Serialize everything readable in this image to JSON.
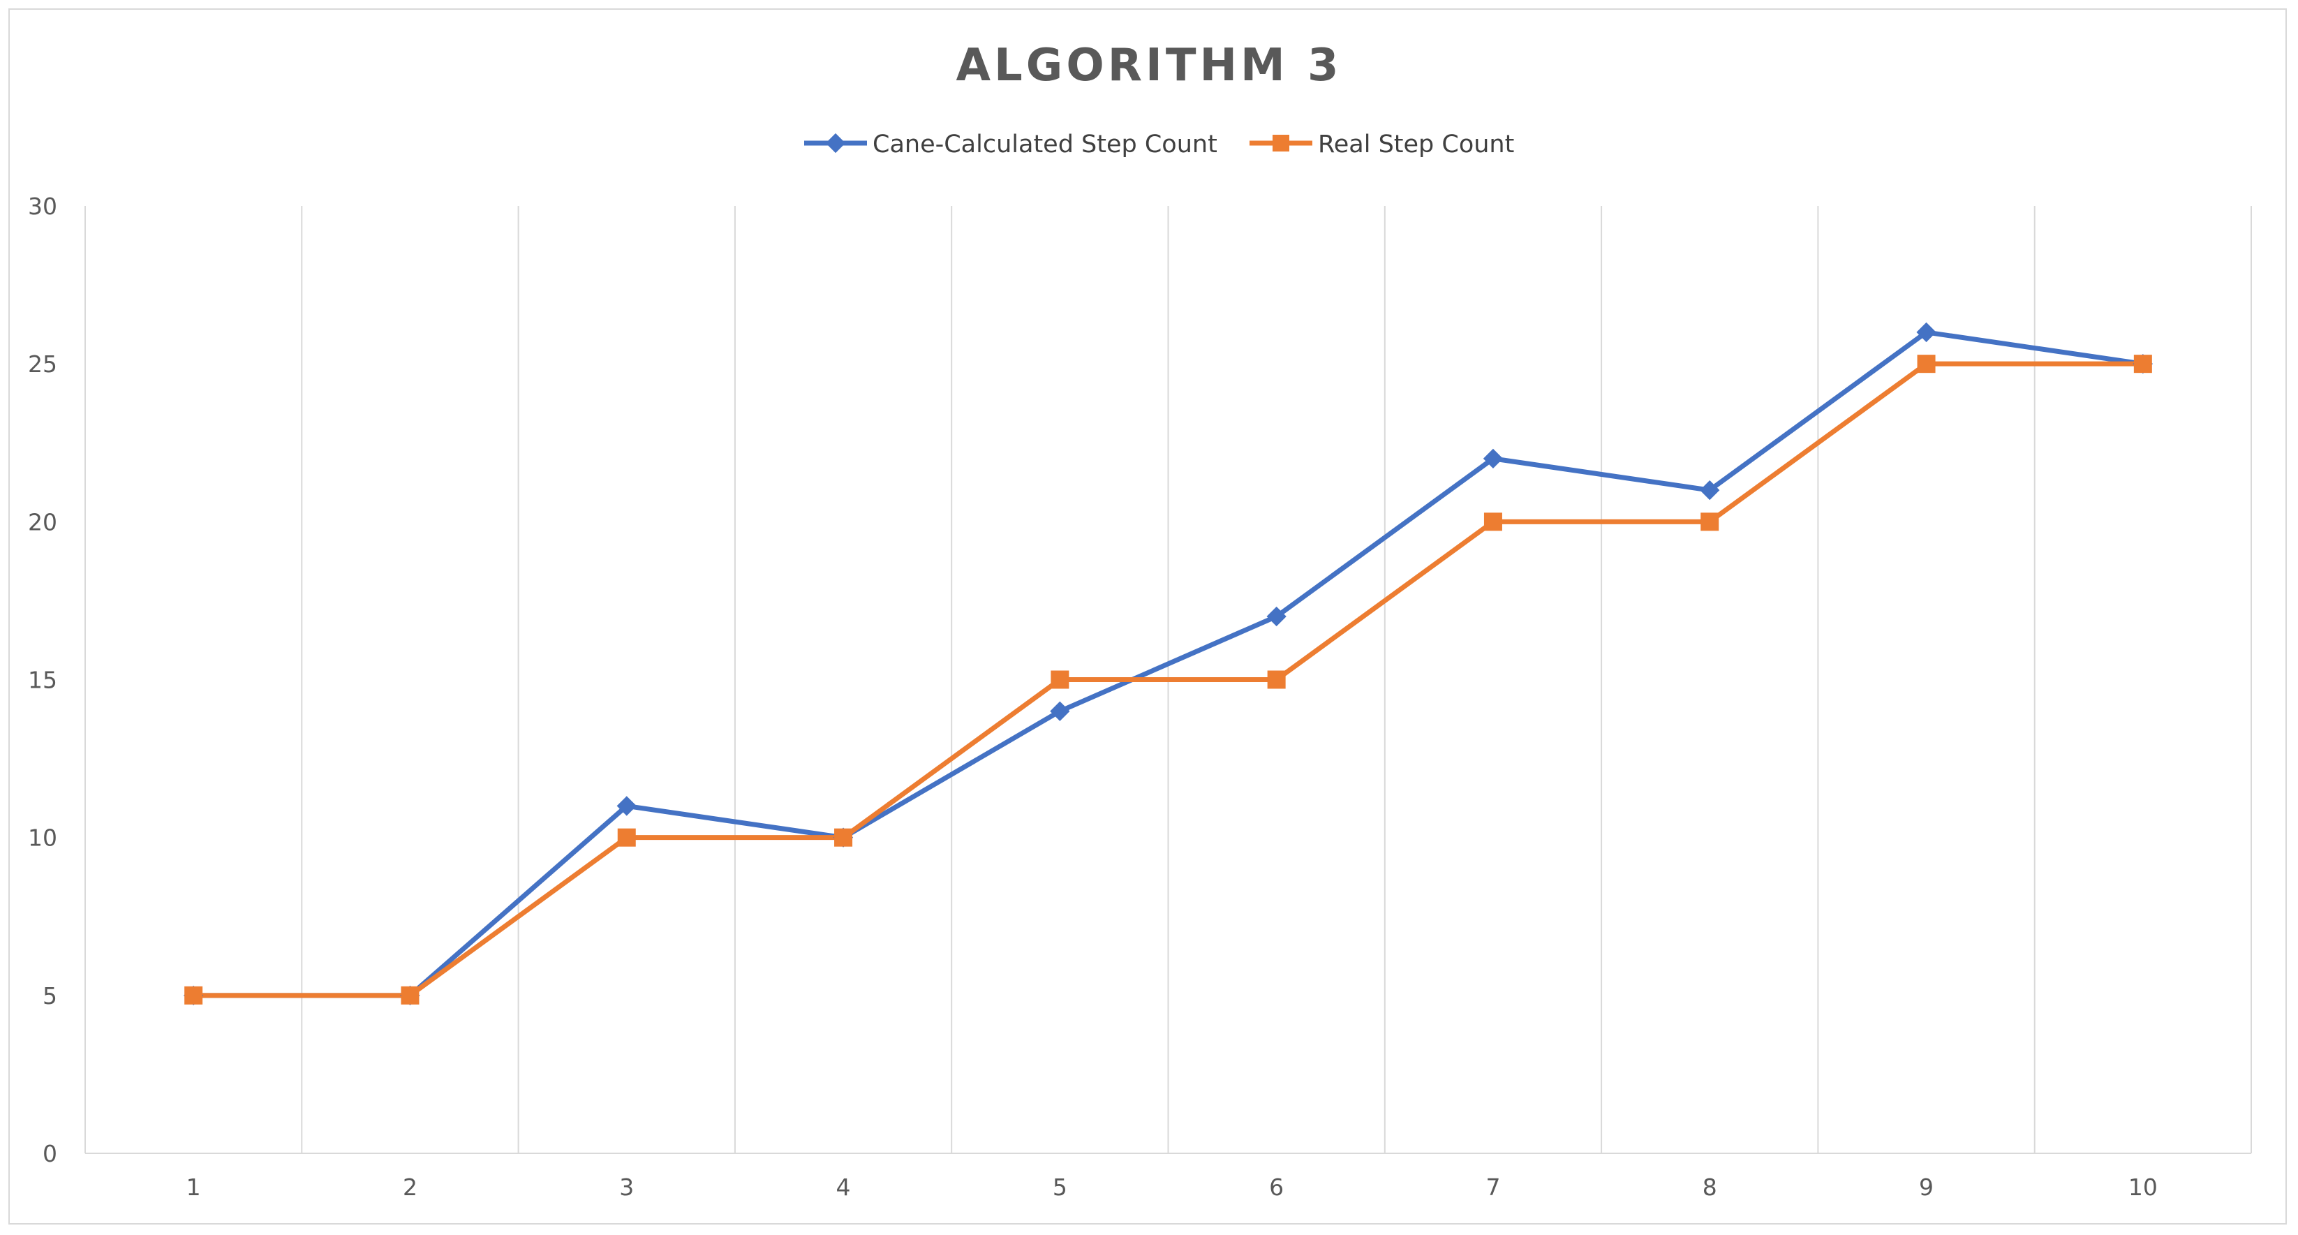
{
  "chart_data": {
    "type": "line",
    "title": "ALGORITHM 3",
    "xlabel": "",
    "ylabel": "",
    "categories": [
      "1",
      "2",
      "3",
      "4",
      "5",
      "6",
      "7",
      "8",
      "9",
      "10"
    ],
    "series": [
      {
        "name": "Cane-Calculated Step Count",
        "values": [
          5,
          5,
          11,
          10,
          14,
          17,
          22,
          21,
          26,
          25
        ],
        "color": "#4472c4",
        "marker": "diamond"
      },
      {
        "name": "Real Step Count",
        "values": [
          5,
          5,
          10,
          10,
          15,
          15,
          20,
          20,
          25,
          25
        ],
        "color": "#ed7d31",
        "marker": "square"
      }
    ],
    "ylim": [
      0,
      30
    ],
    "yticks": [
      "0",
      "5",
      "10",
      "15",
      "20",
      "25",
      "30"
    ],
    "grid": "vertical",
    "legend_position": "top-center"
  }
}
